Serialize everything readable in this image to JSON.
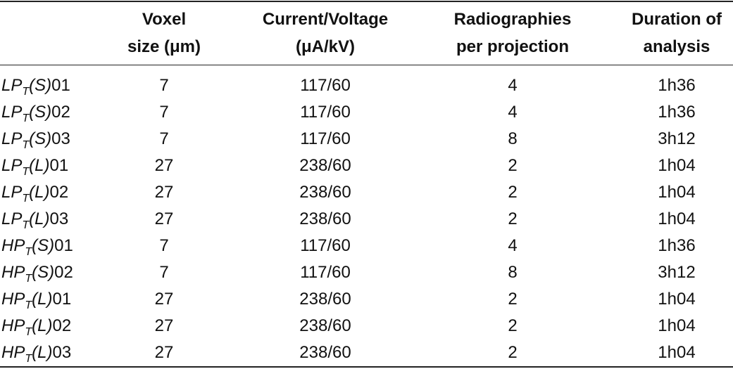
{
  "table": {
    "header": [
      [
        "Voxel",
        "size (μm)"
      ],
      [
        "Current/Voltage",
        "(μA/kV)"
      ],
      [
        "Radiographies",
        "per projection"
      ],
      [
        "Duration of",
        "analysis"
      ]
    ],
    "rows": [
      {
        "label": [
          "LP",
          "T",
          "(S)",
          "01"
        ],
        "cells": [
          7,
          "117/60",
          4,
          "1h36"
        ]
      },
      {
        "label": [
          "LP",
          "T",
          "(S)",
          "02"
        ],
        "cells": [
          7,
          "117/60",
          4,
          "1h36"
        ]
      },
      {
        "label": [
          "LP",
          "T",
          "(S)",
          "03"
        ],
        "cells": [
          7,
          "117/60",
          8,
          "3h12"
        ]
      },
      {
        "label": [
          "LP",
          "T",
          "(L)",
          "01"
        ],
        "cells": [
          27,
          "238/60",
          2,
          "1h04"
        ]
      },
      {
        "label": [
          "LP",
          "T",
          "(L)",
          "02"
        ],
        "cells": [
          27,
          "238/60",
          2,
          "1h04"
        ]
      },
      {
        "label": [
          "LP",
          "T",
          "(L)",
          "03"
        ],
        "cells": [
          27,
          "238/60",
          2,
          "1h04"
        ]
      },
      {
        "label": [
          "HP",
          "T",
          "(S)",
          "01"
        ],
        "cells": [
          7,
          "117/60",
          4,
          "1h36"
        ]
      },
      {
        "label": [
          "HP",
          "T",
          "(S)",
          "02"
        ],
        "cells": [
          7,
          "117/60",
          8,
          "3h12"
        ]
      },
      {
        "label": [
          "HP",
          "T",
          "(L)",
          "01"
        ],
        "cells": [
          27,
          "238/60",
          2,
          "1h04"
        ]
      },
      {
        "label": [
          "HP",
          "T",
          "(L)",
          "02"
        ],
        "cells": [
          27,
          "238/60",
          2,
          "1h04"
        ]
      },
      {
        "label": [
          "HP",
          "T",
          "(L)",
          "03"
        ],
        "cells": [
          27,
          "238/60",
          2,
          "1h04"
        ]
      }
    ]
  }
}
